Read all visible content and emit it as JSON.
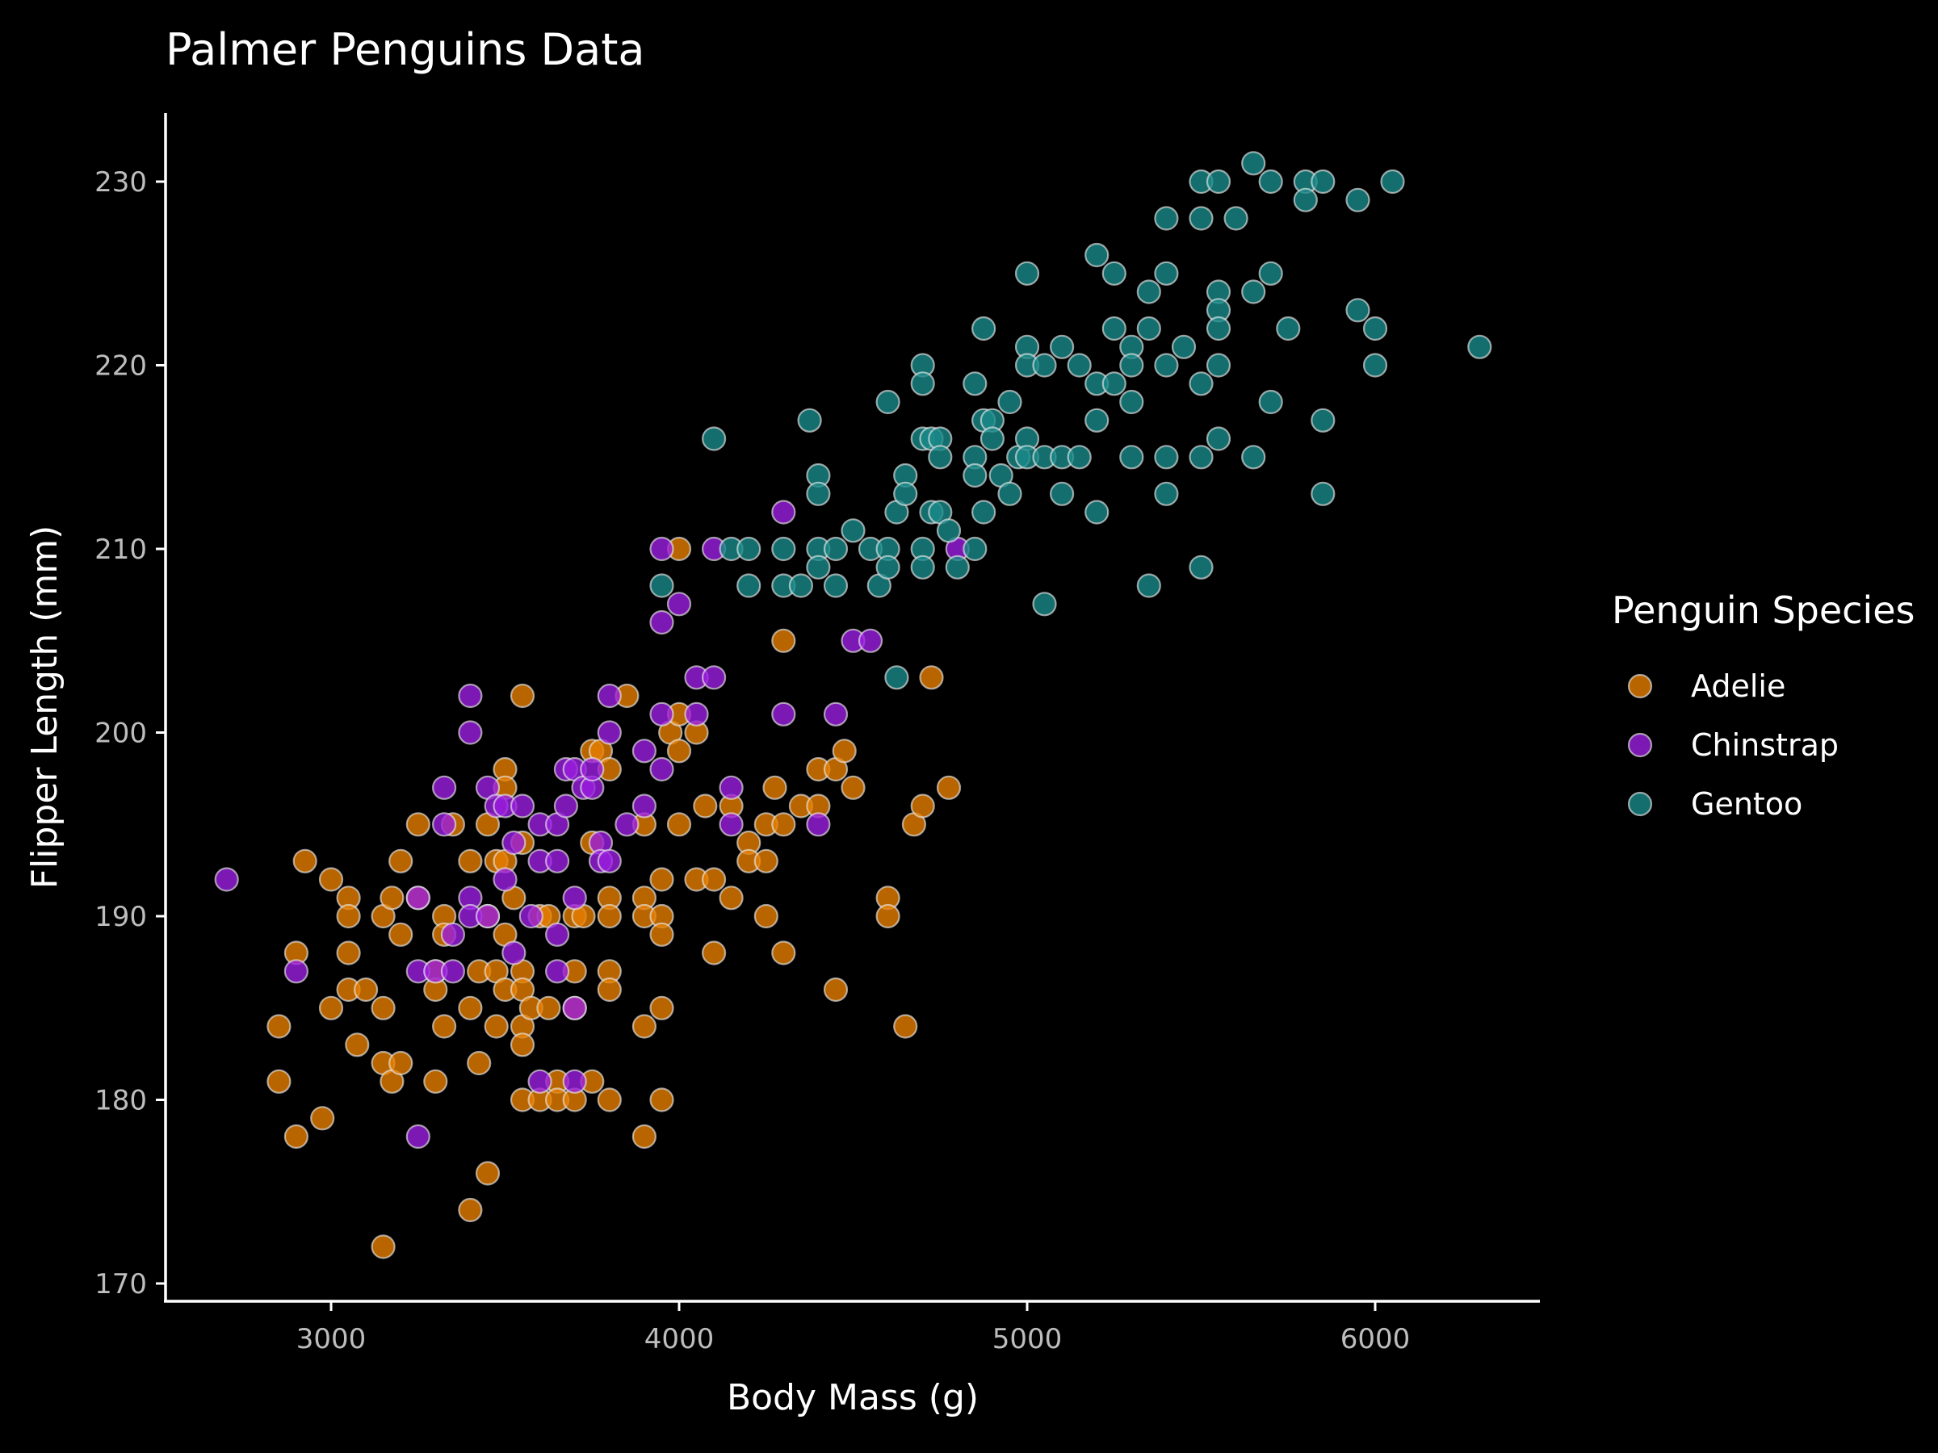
{
  "chart_data": {
    "type": "scatter",
    "title": "Palmer Penguins Data",
    "xlabel": "Body Mass (g)",
    "ylabel": "Flipper Length (mm)",
    "xlim": [
      2600,
      6500
    ],
    "ylim": [
      169,
      234
    ],
    "xticks": [
      3000,
      4000,
      5000,
      6000
    ],
    "yticks": [
      170,
      180,
      190,
      200,
      210,
      220,
      230
    ],
    "grid": false,
    "legend": {
      "title": "Penguin Species",
      "position": "right"
    },
    "series": [
      {
        "name": "Adelie",
        "color": "#e67e00",
        "points": [
          [
            2850,
            184
          ],
          [
            2850,
            181
          ],
          [
            2900,
            188
          ],
          [
            2900,
            178
          ],
          [
            2925,
            193
          ],
          [
            2975,
            179
          ],
          [
            3000,
            192
          ],
          [
            3000,
            185
          ],
          [
            3050,
            191
          ],
          [
            3050,
            190
          ],
          [
            3050,
            188
          ],
          [
            3050,
            186
          ],
          [
            3075,
            183
          ],
          [
            3100,
            186
          ],
          [
            3150,
            190
          ],
          [
            3150,
            185
          ],
          [
            3150,
            182
          ],
          [
            3150,
            172
          ],
          [
            3175,
            191
          ],
          [
            3175,
            181
          ],
          [
            3200,
            193
          ],
          [
            3200,
            189
          ],
          [
            3200,
            182
          ],
          [
            3250,
            195
          ],
          [
            3250,
            191
          ],
          [
            3300,
            187
          ],
          [
            3300,
            186
          ],
          [
            3300,
            181
          ],
          [
            3325,
            190
          ],
          [
            3325,
            189
          ],
          [
            3325,
            184
          ],
          [
            3350,
            195
          ],
          [
            3400,
            193
          ],
          [
            3400,
            185
          ],
          [
            3400,
            174
          ],
          [
            3425,
            187
          ],
          [
            3425,
            182
          ],
          [
            3450,
            195
          ],
          [
            3450,
            190
          ],
          [
            3450,
            176
          ],
          [
            3475,
            193
          ],
          [
            3475,
            187
          ],
          [
            3475,
            184
          ],
          [
            3500,
            198
          ],
          [
            3500,
            197
          ],
          [
            3500,
            193
          ],
          [
            3500,
            189
          ],
          [
            3500,
            186
          ],
          [
            3525,
            191
          ],
          [
            3550,
            202
          ],
          [
            3550,
            194
          ],
          [
            3550,
            187
          ],
          [
            3550,
            186
          ],
          [
            3550,
            184
          ],
          [
            3550,
            183
          ],
          [
            3550,
            180
          ],
          [
            3575,
            185
          ],
          [
            3600,
            190
          ],
          [
            3600,
            180
          ],
          [
            3625,
            190
          ],
          [
            3625,
            185
          ],
          [
            3650,
            181
          ],
          [
            3650,
            180
          ],
          [
            3700,
            190
          ],
          [
            3700,
            187
          ],
          [
            3700,
            185
          ],
          [
            3700,
            180
          ],
          [
            3725,
            190
          ],
          [
            3750,
            199
          ],
          [
            3750,
            194
          ],
          [
            3750,
            181
          ],
          [
            3775,
            199
          ],
          [
            3800,
            198
          ],
          [
            3800,
            191
          ],
          [
            3800,
            190
          ],
          [
            3800,
            187
          ],
          [
            3800,
            186
          ],
          [
            3800,
            180
          ],
          [
            3850,
            202
          ],
          [
            3900,
            195
          ],
          [
            3900,
            191
          ],
          [
            3900,
            190
          ],
          [
            3900,
            184
          ],
          [
            3900,
            178
          ],
          [
            3950,
            192
          ],
          [
            3950,
            190
          ],
          [
            3950,
            189
          ],
          [
            3950,
            185
          ],
          [
            3950,
            180
          ],
          [
            3975,
            200
          ],
          [
            4000,
            210
          ],
          [
            4000,
            201
          ],
          [
            4000,
            199
          ],
          [
            4000,
            195
          ],
          [
            4050,
            200
          ],
          [
            4050,
            192
          ],
          [
            4075,
            196
          ],
          [
            4100,
            192
          ],
          [
            4100,
            188
          ],
          [
            4150,
            196
          ],
          [
            4150,
            191
          ],
          [
            4200,
            194
          ],
          [
            4200,
            193
          ],
          [
            4250,
            195
          ],
          [
            4250,
            193
          ],
          [
            4250,
            190
          ],
          [
            4275,
            197
          ],
          [
            4300,
            205
          ],
          [
            4300,
            195
          ],
          [
            4300,
            188
          ],
          [
            4350,
            196
          ],
          [
            4400,
            198
          ],
          [
            4400,
            196
          ],
          [
            4450,
            198
          ],
          [
            4450,
            186
          ],
          [
            4475,
            199
          ],
          [
            4500,
            197
          ],
          [
            4600,
            191
          ],
          [
            4600,
            190
          ],
          [
            4650,
            184
          ],
          [
            4675,
            195
          ],
          [
            4700,
            196
          ],
          [
            4725,
            203
          ],
          [
            4775,
            197
          ]
        ]
      },
      {
        "name": "Chinstrap",
        "color": "#9b1ee0",
        "points": [
          [
            2700,
            192
          ],
          [
            2900,
            187
          ],
          [
            3250,
            191
          ],
          [
            3250,
            187
          ],
          [
            3250,
            178
          ],
          [
            3300,
            187
          ],
          [
            3325,
            195
          ],
          [
            3325,
            197
          ],
          [
            3350,
            189
          ],
          [
            3350,
            187
          ],
          [
            3400,
            202
          ],
          [
            3400,
            200
          ],
          [
            3400,
            191
          ],
          [
            3400,
            190
          ],
          [
            3450,
            197
          ],
          [
            3450,
            190
          ],
          [
            3475,
            196
          ],
          [
            3500,
            196
          ],
          [
            3500,
            192
          ],
          [
            3525,
            194
          ],
          [
            3525,
            188
          ],
          [
            3550,
            196
          ],
          [
            3575,
            190
          ],
          [
            3600,
            195
          ],
          [
            3600,
            193
          ],
          [
            3600,
            181
          ],
          [
            3650,
            195
          ],
          [
            3650,
            193
          ],
          [
            3650,
            189
          ],
          [
            3650,
            187
          ],
          [
            3675,
            196
          ],
          [
            3675,
            198
          ],
          [
            3700,
            198
          ],
          [
            3700,
            191
          ],
          [
            3700,
            185
          ],
          [
            3700,
            181
          ],
          [
            3725,
            197
          ],
          [
            3750,
            197
          ],
          [
            3750,
            198
          ],
          [
            3775,
            194
          ],
          [
            3775,
            193
          ],
          [
            3800,
            193
          ],
          [
            3800,
            200
          ],
          [
            3800,
            202
          ],
          [
            3850,
            195
          ],
          [
            3900,
            199
          ],
          [
            3900,
            196
          ],
          [
            3950,
            210
          ],
          [
            3950,
            206
          ],
          [
            3950,
            201
          ],
          [
            3950,
            198
          ],
          [
            4000,
            207
          ],
          [
            4050,
            203
          ],
          [
            4050,
            201
          ],
          [
            4100,
            210
          ],
          [
            4100,
            203
          ],
          [
            4150,
            197
          ],
          [
            4150,
            195
          ],
          [
            4300,
            212
          ],
          [
            4300,
            201
          ],
          [
            4400,
            195
          ],
          [
            4450,
            201
          ],
          [
            4500,
            205
          ],
          [
            4550,
            205
          ],
          [
            4800,
            210
          ]
        ]
      },
      {
        "name": "Gentoo",
        "color": "#1a8a8a",
        "points": [
          [
            3950,
            208
          ],
          [
            4100,
            216
          ],
          [
            4150,
            210
          ],
          [
            4200,
            210
          ],
          [
            4200,
            208
          ],
          [
            4300,
            210
          ],
          [
            4300,
            208
          ],
          [
            4350,
            208
          ],
          [
            4375,
            217
          ],
          [
            4400,
            214
          ],
          [
            4400,
            213
          ],
          [
            4400,
            210
          ],
          [
            4400,
            209
          ],
          [
            4450,
            210
          ],
          [
            4450,
            208
          ],
          [
            4500,
            211
          ],
          [
            4550,
            210
          ],
          [
            4575,
            208
          ],
          [
            4600,
            218
          ],
          [
            4600,
            210
          ],
          [
            4600,
            209
          ],
          [
            4625,
            212
          ],
          [
            4625,
            203
          ],
          [
            4650,
            214
          ],
          [
            4650,
            213
          ],
          [
            4700,
            220
          ],
          [
            4700,
            219
          ],
          [
            4700,
            216
          ],
          [
            4700,
            210
          ],
          [
            4700,
            209
          ],
          [
            4725,
            216
          ],
          [
            4725,
            212
          ],
          [
            4750,
            216
          ],
          [
            4750,
            215
          ],
          [
            4750,
            212
          ],
          [
            4775,
            211
          ],
          [
            4800,
            209
          ],
          [
            4850,
            219
          ],
          [
            4850,
            215
          ],
          [
            4850,
            214
          ],
          [
            4850,
            210
          ],
          [
            4875,
            222
          ],
          [
            4875,
            217
          ],
          [
            4875,
            212
          ],
          [
            4900,
            217
          ],
          [
            4900,
            216
          ],
          [
            4925,
            214
          ],
          [
            4950,
            218
          ],
          [
            4950,
            213
          ],
          [
            4975,
            215
          ],
          [
            5000,
            225
          ],
          [
            5000,
            221
          ],
          [
            5000,
            220
          ],
          [
            5000,
            216
          ],
          [
            5000,
            215
          ],
          [
            5050,
            220
          ],
          [
            5050,
            215
          ],
          [
            5050,
            207
          ],
          [
            5100,
            221
          ],
          [
            5100,
            215
          ],
          [
            5100,
            213
          ],
          [
            5150,
            220
          ],
          [
            5150,
            215
          ],
          [
            5200,
            226
          ],
          [
            5200,
            219
          ],
          [
            5200,
            217
          ],
          [
            5200,
            212
          ],
          [
            5250,
            225
          ],
          [
            5250,
            222
          ],
          [
            5250,
            219
          ],
          [
            5300,
            221
          ],
          [
            5300,
            220
          ],
          [
            5300,
            218
          ],
          [
            5300,
            215
          ],
          [
            5350,
            224
          ],
          [
            5350,
            222
          ],
          [
            5350,
            208
          ],
          [
            5400,
            228
          ],
          [
            5400,
            225
          ],
          [
            5400,
            220
          ],
          [
            5400,
            215
          ],
          [
            5400,
            213
          ],
          [
            5450,
            221
          ],
          [
            5500,
            230
          ],
          [
            5500,
            228
          ],
          [
            5500,
            219
          ],
          [
            5500,
            215
          ],
          [
            5500,
            209
          ],
          [
            5550,
            230
          ],
          [
            5550,
            224
          ],
          [
            5550,
            223
          ],
          [
            5550,
            222
          ],
          [
            5550,
            220
          ],
          [
            5550,
            216
          ],
          [
            5600,
            228
          ],
          [
            5650,
            231
          ],
          [
            5650,
            224
          ],
          [
            5650,
            215
          ],
          [
            5700,
            230
          ],
          [
            5700,
            225
          ],
          [
            5700,
            218
          ],
          [
            5750,
            222
          ],
          [
            5800,
            230
          ],
          [
            5800,
            229
          ],
          [
            5850,
            230
          ],
          [
            5850,
            217
          ],
          [
            5850,
            213
          ],
          [
            5950,
            229
          ],
          [
            5950,
            223
          ],
          [
            6000,
            222
          ],
          [
            6000,
            220
          ],
          [
            6050,
            230
          ],
          [
            6300,
            221
          ]
        ]
      }
    ]
  }
}
